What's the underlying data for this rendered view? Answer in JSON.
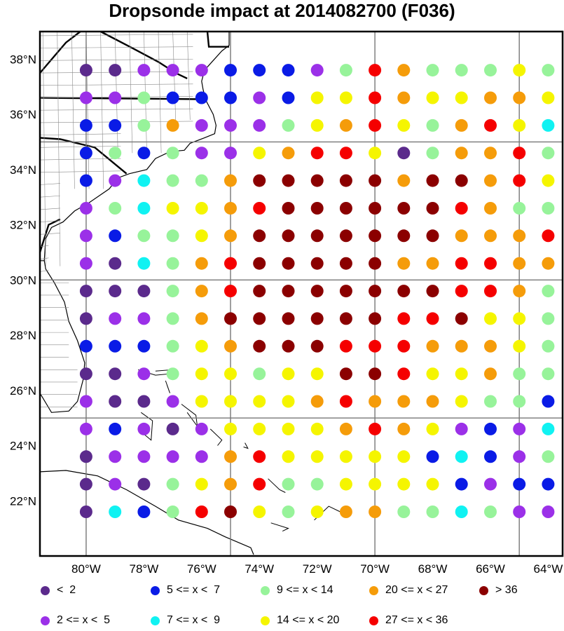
{
  "title": "Dropsonde impact at 2014082700 (F036)",
  "map": {
    "lon_range": [
      -81.6,
      -63.5
    ],
    "lat_range": [
      20.0,
      39.0
    ],
    "x_tick_labels": [
      "80°W",
      "78°W",
      "76°W",
      "74°W",
      "72°W",
      "70°W",
      "68°W",
      "66°W",
      "64°W"
    ],
    "y_tick_labels": [
      "38°N",
      "36°N",
      "34°N",
      "32°N",
      "30°N",
      "28°N",
      "26°N",
      "24°N",
      "22°N"
    ],
    "grid_box_lons": [
      -80,
      -75,
      -70,
      -65
    ],
    "grid_box_lats": [
      35,
      30,
      25
    ],
    "land_color": "#ffffff",
    "coast_color": "#000000"
  },
  "legend": [
    {
      "label": "<  2",
      "color": "#5b2a8c"
    },
    {
      "label": "5 <= x <  7",
      "color": "#0a1be6"
    },
    {
      "label": "9 <= x < 14",
      "color": "#97f39a"
    },
    {
      "label": "20 <= x < 27",
      "color": "#f59c0a"
    },
    {
      "label": "> 36",
      "color": "#8b0000"
    },
    {
      "label": "2 <= x <  5",
      "color": "#9b30e8"
    },
    {
      "label": "7 <= x <  9",
      "color": "#10f2f2"
    },
    {
      "label": "14 <= x < 20",
      "color": "#f5f500"
    },
    {
      "label": "27 <= x < 36",
      "color": "#f50000"
    }
  ],
  "chart_data": {
    "type": "scatter",
    "lons": [
      -80,
      -79,
      -78,
      -77,
      -76,
      -75,
      -74,
      -73,
      -72,
      -71,
      -70,
      -69,
      -68,
      -67,
      -66,
      -65,
      -64
    ],
    "lats": [
      37.6,
      36.6,
      35.6,
      34.6,
      33.6,
      32.6,
      31.6,
      30.6,
      29.6,
      28.6,
      27.6,
      26.6,
      25.6,
      24.6,
      23.6,
      22.6,
      21.6
    ],
    "category_codes": [
      "<2",
      "2-5",
      "5-7",
      "7-9",
      "9-14",
      "14-20",
      "20-27",
      "27-36",
      ">36"
    ],
    "colors": {
      "<2": "#5b2a8c",
      "2-5": "#9b30e8",
      "5-7": "#0a1be6",
      "7-9": "#10f2f2",
      "9-14": "#97f39a",
      "14-20": "#f5f500",
      "20-27": "#f59c0a",
      "27-36": "#f50000",
      ">36": "#8b0000"
    },
    "grid": [
      [
        "<2",
        "<2",
        "2-5",
        "2-5",
        "2-5",
        "5-7",
        "5-7",
        "5-7",
        "2-5",
        "9-14",
        "27-36",
        "20-27",
        "9-14",
        "9-14",
        "9-14",
        "14-20",
        "9-14"
      ],
      [
        "2-5",
        "2-5",
        "9-14",
        "5-7",
        "5-7",
        "5-7",
        "2-5",
        "5-7",
        "14-20",
        "14-20",
        "27-36",
        "20-27",
        "14-20",
        "14-20",
        "20-27",
        "20-27",
        "14-20"
      ],
      [
        "5-7",
        "5-7",
        "9-14",
        "20-27",
        "2-5",
        "2-5",
        "2-5",
        "9-14",
        "14-20",
        "20-27",
        "27-36",
        "14-20",
        "9-14",
        "20-27",
        "27-36",
        "14-20",
        "7-9"
      ],
      [
        "5-7",
        "9-14",
        "5-7",
        "9-14",
        "2-5",
        "2-5",
        "14-20",
        "20-27",
        "27-36",
        "27-36",
        "14-20",
        "<2",
        "9-14",
        "20-27",
        "20-27",
        "27-36",
        "9-14"
      ],
      [
        "5-7",
        "2-5",
        "7-9",
        "9-14",
        "9-14",
        "20-27",
        ">36",
        ">36",
        ">36",
        ">36",
        ">36",
        "20-27",
        ">36",
        ">36",
        "20-27",
        "27-36",
        "14-20"
      ],
      [
        "2-5",
        "9-14",
        "7-9",
        "14-20",
        "14-20",
        "20-27",
        "27-36",
        ">36",
        ">36",
        ">36",
        ">36",
        ">36",
        ">36",
        "27-36",
        "20-27",
        "9-14",
        "9-14"
      ],
      [
        "2-5",
        "5-7",
        "9-14",
        "9-14",
        "14-20",
        "20-27",
        ">36",
        ">36",
        ">36",
        ">36",
        ">36",
        ">36",
        ">36",
        "20-27",
        "20-27",
        "20-27",
        "27-36"
      ],
      [
        "2-5",
        "<2",
        "7-9",
        "9-14",
        "20-27",
        "27-36",
        ">36",
        ">36",
        ">36",
        ">36",
        ">36",
        "20-27",
        "20-27",
        "27-36",
        "27-36",
        "20-27",
        "20-27"
      ],
      [
        "<2",
        "<2",
        "<2",
        "9-14",
        "20-27",
        "27-36",
        ">36",
        ">36",
        ">36",
        ">36",
        ">36",
        ">36",
        ">36",
        "27-36",
        "27-36",
        "20-27",
        "9-14"
      ],
      [
        "<2",
        "2-5",
        "2-5",
        "9-14",
        "20-27",
        ">36",
        ">36",
        ">36",
        ">36",
        ">36",
        ">36",
        "27-36",
        "27-36",
        ">36",
        "14-20",
        "14-20",
        "9-14"
      ],
      [
        "5-7",
        "5-7",
        "5-7",
        "9-14",
        "14-20",
        "20-27",
        ">36",
        ">36",
        ">36",
        "27-36",
        "27-36",
        "27-36",
        "20-27",
        "20-27",
        "20-27",
        "14-20",
        "9-14"
      ],
      [
        "<2",
        "<2",
        "2-5",
        "9-14",
        "14-20",
        "14-20",
        "9-14",
        "14-20",
        "14-20",
        ">36",
        ">36",
        "27-36",
        "14-20",
        "14-20",
        "20-27",
        "9-14",
        "9-14"
      ],
      [
        "2-5",
        "<2",
        "<2",
        "2-5",
        "14-20",
        "14-20",
        "14-20",
        "14-20",
        "20-27",
        "27-36",
        "20-27",
        "20-27",
        "20-27",
        "14-20",
        "9-14",
        "9-14",
        "5-7"
      ],
      [
        "2-5",
        "5-7",
        "2-5",
        "<2",
        "2-5",
        "14-20",
        "14-20",
        "14-20",
        "14-20",
        "20-27",
        "27-36",
        "20-27",
        "14-20",
        "2-5",
        "5-7",
        "2-5",
        "7-9"
      ],
      [
        "<2",
        "2-5",
        "2-5",
        "2-5",
        "2-5",
        "20-27",
        "27-36",
        "14-20",
        "14-20",
        "14-20",
        "14-20",
        "14-20",
        "5-7",
        "7-9",
        "5-7",
        "2-5",
        "9-14"
      ],
      [
        "<2",
        "2-5",
        "<2",
        "9-14",
        "14-20",
        "20-27",
        "27-36",
        "9-14",
        "9-14",
        "14-20",
        "14-20",
        "14-20",
        "14-20",
        "5-7",
        "2-5",
        "5-7",
        "5-7"
      ],
      [
        "<2",
        "7-9",
        "5-7",
        "9-14",
        "27-36",
        ">36",
        "14-20",
        "9-14",
        "14-20",
        "20-27",
        "20-27",
        "9-14",
        "9-14",
        "7-9",
        "9-14",
        "2-5",
        "2-5"
      ]
    ]
  }
}
